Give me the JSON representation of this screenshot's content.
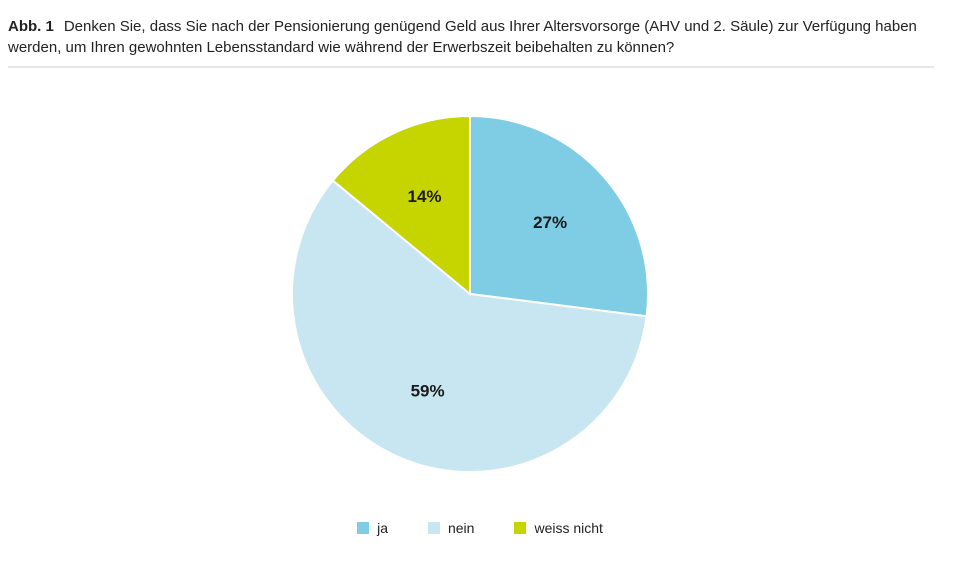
{
  "header": {
    "fig_label": "Abb. 1",
    "question": "Denken Sie, dass Sie nach der Pensionierung genügend Geld aus Ihrer Altersvorsorge (AHV und 2. Säule) zur Verfügung haben werden, um Ihren gewohnten Lebensstandard wie während der Erwerbszeit beibehalten zu können?"
  },
  "chart_data": {
    "type": "pie",
    "title": "Denken Sie, dass Sie nach der Pensionierung genügend Geld aus Ihrer Altersvorsorge (AHV und 2. Säule) zur Verfügung haben werden, um Ihren gewohnten Lebensstandard wie während der Erwerbszeit beibehalten zu können?",
    "legend_position": "bottom",
    "slices": [
      {
        "label": "ja",
        "value": 27,
        "display": "27%",
        "color": "#7fcde4"
      },
      {
        "label": "nein",
        "value": 59,
        "display": "59%",
        "color": "#c8e6f1"
      },
      {
        "label": "weiss nicht",
        "value": 14,
        "display": "14%",
        "color": "#c6d400"
      }
    ]
  }
}
